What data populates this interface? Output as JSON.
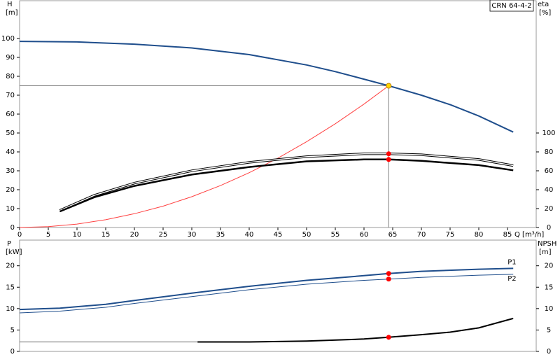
{
  "chart_data": [
    {
      "type": "line",
      "model": "CRN 64-4-2",
      "y_label": "H",
      "y_unit": "[m]",
      "y2_label": "eta",
      "y2_unit": "[%]",
      "x_label": "Q [m³/h]",
      "xlim": [
        0,
        90
      ],
      "xticks": [
        0,
        5,
        10,
        15,
        20,
        25,
        30,
        35,
        40,
        45,
        50,
        55,
        60,
        65,
        70,
        75,
        80,
        85
      ],
      "ylim": [
        0,
        120
      ],
      "yticks": [
        0,
        10,
        20,
        30,
        40,
        50,
        60,
        70,
        80,
        90,
        100
      ],
      "y2lim": [
        0,
        240
      ],
      "y2ticks": [
        0,
        20,
        40,
        60,
        80,
        100
      ],
      "series": [
        {
          "color": "#1f4e8c",
          "width": 2,
          "x": [
            0,
            10,
            20,
            30,
            40,
            50,
            55,
            60,
            64.3,
            70,
            75,
            80,
            86
          ],
          "values": [
            98.5,
            98.2,
            97,
            95,
            91.5,
            86,
            82.5,
            78.5,
            75,
            70,
            65,
            59,
            50.5
          ]
        },
        {
          "color": "#ff4040",
          "width": 1,
          "x": [
            0,
            5,
            10,
            15,
            20,
            25,
            30,
            35,
            40,
            45,
            50,
            55,
            60,
            64.3
          ],
          "values": [
            0,
            0.45,
            1.8,
            4.1,
            7.3,
            11.3,
            16.3,
            22.2,
            29,
            36.7,
            45.4,
            54.9,
            65.3,
            75
          ]
        },
        {
          "color": "#000000",
          "width": 1.2,
          "axis": "y2",
          "double": true,
          "x": [
            7,
            13,
            20,
            30,
            40,
            50,
            60,
            64.3,
            70,
            80,
            86
          ],
          "values": [
            18,
            34,
            47,
            60,
            69,
            75,
            78,
            78,
            77,
            72,
            65.5
          ]
        },
        {
          "color": "#000000",
          "width": 2.5,
          "axis": "y2",
          "x": [
            7,
            13,
            20,
            30,
            40,
            50,
            60,
            64.3,
            70,
            80,
            86
          ],
          "values": [
            17,
            32,
            44,
            56,
            64,
            70,
            72,
            72,
            70.5,
            66,
            60.5
          ]
        }
      ],
      "duty_lines": {
        "x": 64.3,
        "y": 75,
        "color": "#808080"
      },
      "markers": [
        {
          "x": 64.3,
          "y": 75,
          "color": "#ffd700"
        },
        {
          "x": 64.3,
          "y": 78,
          "axis": "y2",
          "color": "#ff0000"
        },
        {
          "x": 64.3,
          "y": 72,
          "axis": "y2",
          "color": "#ff0000"
        }
      ]
    },
    {
      "type": "line",
      "y_label": "P",
      "y_unit": "[kW]",
      "y2_label": "NPSH",
      "y2_unit": "[m]",
      "xlim": [
        0,
        90
      ],
      "ylim": [
        0,
        26
      ],
      "yticks": [
        0,
        5,
        10,
        15,
        20
      ],
      "y2lim": [
        0,
        26
      ],
      "y2ticks": [
        0,
        5,
        10,
        15,
        20
      ],
      "series": [
        {
          "name": "P1",
          "color": "#1f4e8c",
          "width": 2,
          "x": [
            0,
            7,
            15,
            20,
            30,
            40,
            50,
            60,
            64.3,
            70,
            80,
            86
          ],
          "values": [
            9.8,
            10.1,
            11,
            11.9,
            13.6,
            15.2,
            16.6,
            17.7,
            18.2,
            18.7,
            19.2,
            19.4
          ]
        },
        {
          "name": "P2",
          "color": "#1f4e8c",
          "width": 1,
          "x": [
            0,
            7,
            15,
            20,
            30,
            40,
            50,
            60,
            64.3,
            70,
            80,
            86
          ],
          "values": [
            9,
            9.4,
            10.3,
            11.2,
            12.8,
            14.4,
            15.7,
            16.6,
            16.9,
            17.3,
            17.8,
            18
          ]
        },
        {
          "color": "#000000",
          "width": 2,
          "axis": "y2",
          "x": [
            31,
            40,
            50,
            60,
            64.3,
            70,
            75,
            80,
            86
          ],
          "values": [
            2.2,
            2.2,
            2.4,
            2.9,
            3.3,
            3.9,
            4.5,
            5.5,
            7.7
          ]
        },
        {
          "color": "#606060",
          "width": 1,
          "axis": "y2",
          "x": [
            0,
            31
          ],
          "values": [
            2.2,
            2.2
          ]
        }
      ],
      "markers": [
        {
          "x": 64.3,
          "y": 18.2,
          "color": "#ff0000"
        },
        {
          "x": 64.3,
          "y": 16.9,
          "color": "#ff0000"
        },
        {
          "x": 64.3,
          "y": 3.3,
          "axis": "y2",
          "color": "#ff0000"
        }
      ]
    }
  ]
}
